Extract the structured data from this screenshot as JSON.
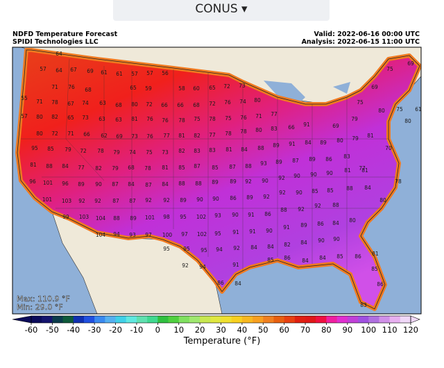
{
  "header": {
    "selector": "CONUS"
  },
  "map": {
    "title": "NDFD Temperature Forecast",
    "source": "SPIDI Technologies LLC",
    "valid": "Valid: 2022-06-16 00:00 UTC",
    "analysis": "Analysis: 2022-06-15 11:00 UTC",
    "max": "Max: 110.9 °F",
    "min": "Min: 29.0 °F",
    "stations": [
      64,
      57,
      64,
      67,
      69,
      61,
      61,
      57,
      57,
      56,
      71,
      76,
      68,
      65,
      59,
      58,
      60,
      65,
      72,
      73,
      69,
      75,
      69,
      55,
      71,
      78,
      67,
      74,
      63,
      68,
      80,
      72,
      66,
      66,
      68,
      72,
      76,
      74,
      80,
      75,
      57,
      80,
      82,
      65,
      73,
      63,
      63,
      81,
      76,
      76,
      78,
      75,
      78,
      75,
      76,
      71,
      77,
      80,
      75,
      61,
      80,
      72,
      71,
      66,
      62,
      69,
      73,
      76,
      77,
      81,
      82,
      77,
      78,
      78,
      80,
      83,
      66,
      91,
      69,
      79,
      80,
      95,
      85,
      79,
      72,
      78,
      79,
      74,
      75,
      73,
      82,
      83,
      83,
      81,
      84,
      88,
      89,
      91,
      84,
      89,
      80,
      79,
      81,
      70,
      81,
      88,
      84,
      77,
      82,
      79,
      68,
      78,
      81,
      85,
      87,
      85,
      87,
      88,
      93,
      89,
      87,
      89,
      86,
      83,
      77,
      96,
      101,
      96,
      89,
      90,
      87,
      84,
      87,
      84,
      88,
      88,
      89,
      89,
      92,
      90,
      92,
      90,
      90,
      90,
      81,
      81,
      78,
      101,
      103,
      92,
      92,
      87,
      87,
      92,
      92,
      89,
      90,
      90,
      86,
      89,
      92,
      92,
      90,
      85,
      85,
      88,
      84,
      80,
      99,
      103,
      104,
      88,
      89,
      101,
      98,
      95,
      102,
      93,
      90,
      91,
      86,
      88,
      92,
      92,
      88,
      80,
      104,
      94,
      93,
      97,
      100,
      97,
      102,
      95,
      91,
      91,
      90,
      91,
      89,
      86,
      84,
      95,
      95,
      95,
      94,
      92,
      84,
      84,
      82,
      84,
      90,
      90,
      92,
      94,
      91,
      85,
      86,
      84,
      84,
      85,
      86,
      81,
      86,
      84,
      85,
      86,
      83
    ]
  },
  "colorbar": {
    "label": "Temperature (°F)",
    "lim": [
      -60,
      120
    ],
    "ticks": [
      -60,
      -50,
      -40,
      -30,
      -20,
      -10,
      0,
      10,
      20,
      30,
      40,
      50,
      60,
      70,
      80,
      90,
      100,
      110,
      120
    ],
    "colors": [
      "#0b0b5a",
      "#14146e",
      "#0b3b4b",
      "#0f5a3a",
      "#1030b0",
      "#2050e0",
      "#3a8af0",
      "#55b0f0",
      "#40d0e8",
      "#60e8e0",
      "#60e0b0",
      "#40d890",
      "#30c040",
      "#50d040",
      "#80e060",
      "#a0e870",
      "#c8e850",
      "#e0e840",
      "#f0e030",
      "#f8d020",
      "#f8b820",
      "#f8a020",
      "#f08020",
      "#e86010",
      "#e84010",
      "#e02010",
      "#e01818",
      "#f01040",
      "#f020a0",
      "#e030d0",
      "#c040d8",
      "#a050e0",
      "#b070e0",
      "#d090e8",
      "#e8b0f0",
      "#f0d8f8"
    ]
  }
}
